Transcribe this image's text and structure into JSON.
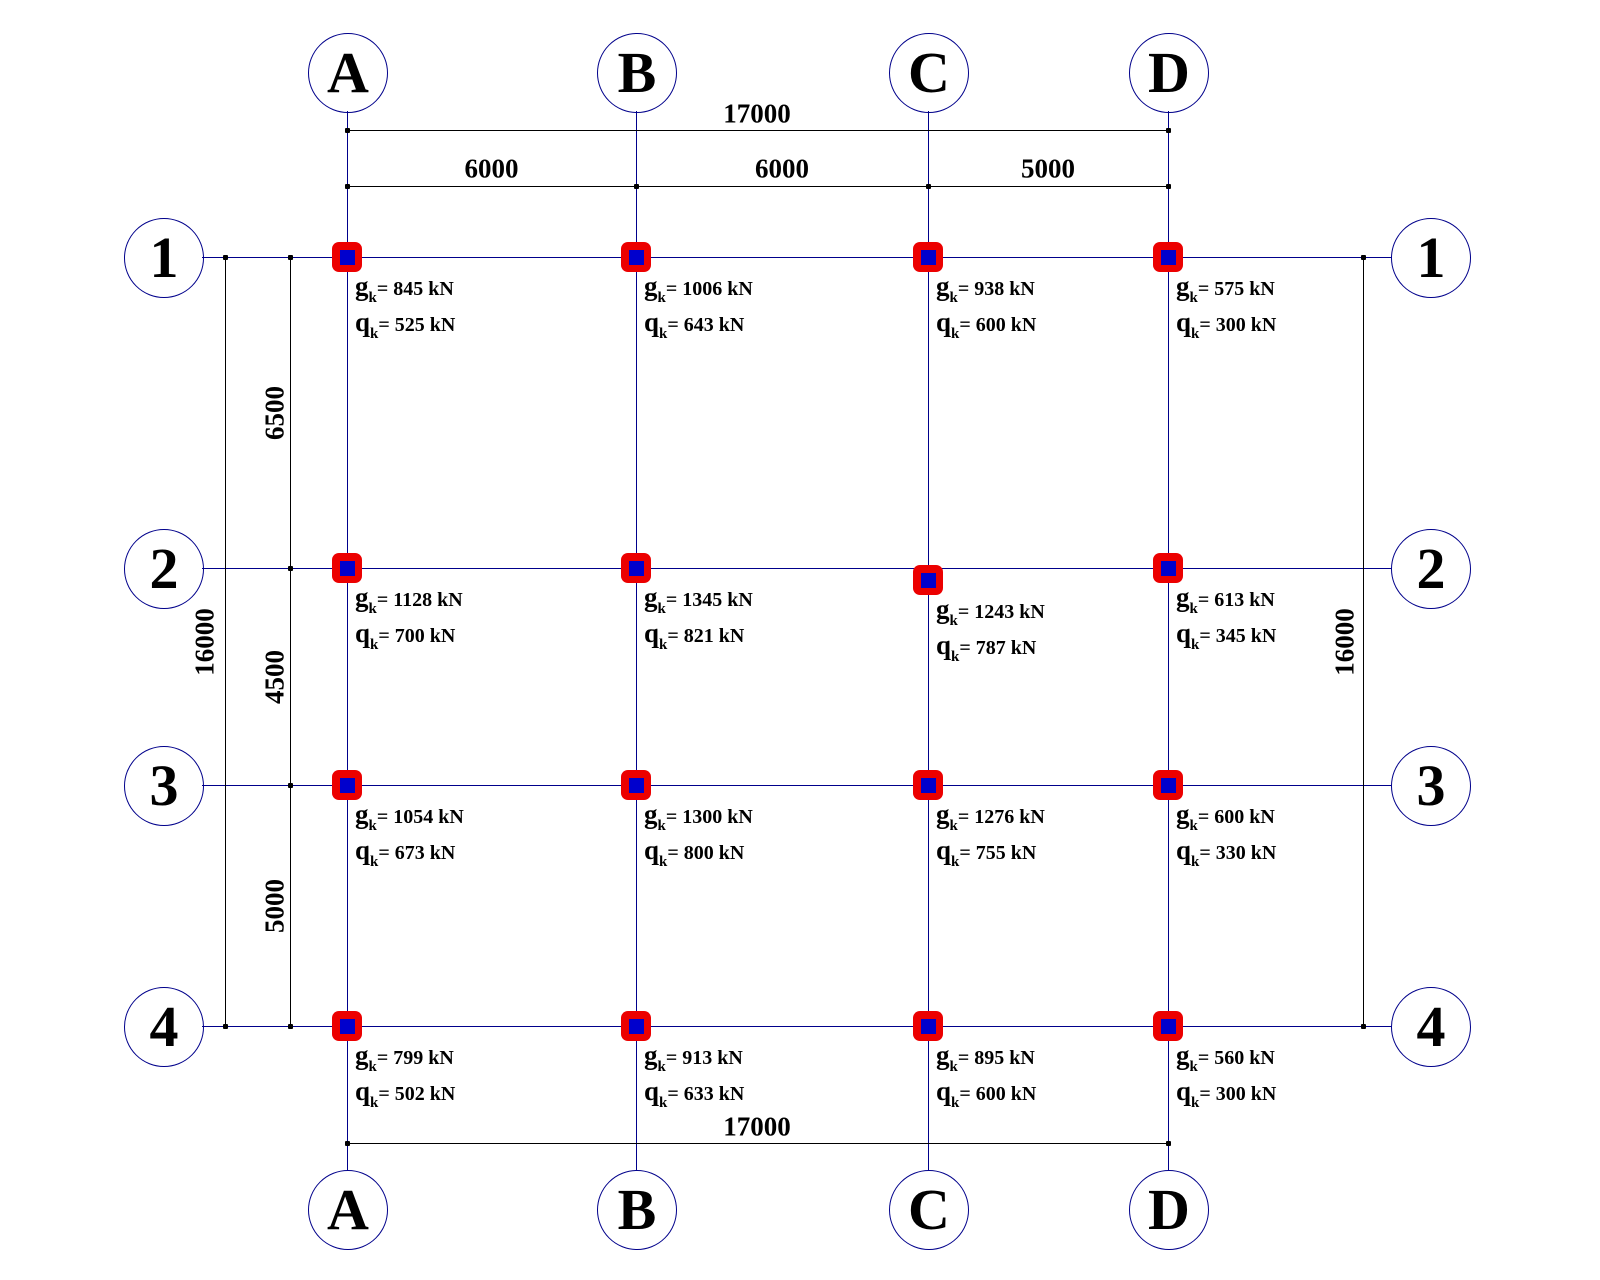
{
  "grid": {
    "column_axes": [
      "A",
      "B",
      "C",
      "D"
    ],
    "row_axes": [
      "1",
      "2",
      "3",
      "4"
    ]
  },
  "dimensions_mm": {
    "top_total": "17000",
    "top_segments": [
      "6000",
      "6000",
      "5000"
    ],
    "bottom_total": "17000",
    "left_total": "16000",
    "left_segments": [
      "6500",
      "4500",
      "5000"
    ],
    "right_total": "16000"
  },
  "loads": {
    "dead_symbol": "g",
    "live_symbol": "q",
    "subscript": "k",
    "equals": "= ",
    "unit": " kN",
    "columns": [
      {
        "id": "A1",
        "gk": "845",
        "qk": "525"
      },
      {
        "id": "B1",
        "gk": "1006",
        "qk": "643"
      },
      {
        "id": "C1",
        "gk": "938",
        "qk": "600"
      },
      {
        "id": "D1",
        "gk": "575",
        "qk": "300"
      },
      {
        "id": "A2",
        "gk": "1128",
        "qk": "700"
      },
      {
        "id": "B2",
        "gk": "1345",
        "qk": "821"
      },
      {
        "id": "C2",
        "gk": "1243",
        "qk": "787"
      },
      {
        "id": "D2",
        "gk": "613",
        "qk": "345"
      },
      {
        "id": "A3",
        "gk": "1054",
        "qk": "673"
      },
      {
        "id": "B3",
        "gk": "1300",
        "qk": "800"
      },
      {
        "id": "C3",
        "gk": "1276",
        "qk": "755"
      },
      {
        "id": "D3",
        "gk": "600",
        "qk": "330"
      },
      {
        "id": "A4",
        "gk": "799",
        "qk": "502"
      },
      {
        "id": "B4",
        "gk": "913",
        "qk": "633"
      },
      {
        "id": "C4",
        "gk": "895",
        "qk": "600"
      },
      {
        "id": "D4",
        "gk": "560",
        "qk": "300"
      }
    ]
  },
  "colors": {
    "grid_line": "#00008b",
    "dim_line": "#000000",
    "column_outline": "#ec0000",
    "column_fill": "#0000cd",
    "text": "#000000"
  }
}
